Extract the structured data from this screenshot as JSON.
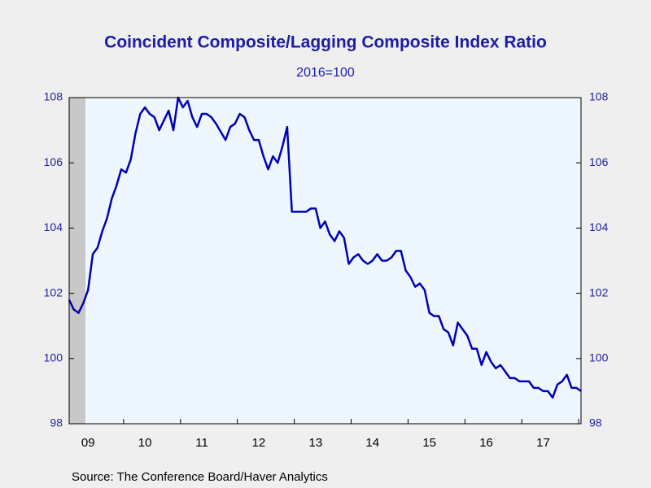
{
  "chart_data": {
    "type": "line",
    "title": "Coincident Composite/Lagging Composite Index Ratio",
    "subtitle": "2016=100",
    "source": "Source:  The Conference Board/Haver Analytics",
    "categories": [
      null,
      null,
      null,
      null,
      "09",
      null,
      null,
      null,
      null,
      null,
      null,
      null,
      null,
      null,
      null,
      null,
      "10",
      null,
      null,
      null,
      null,
      null,
      null,
      null,
      null,
      null,
      null,
      null,
      "11",
      null,
      null,
      null,
      null,
      null,
      null,
      null,
      null,
      null,
      null,
      null,
      "12",
      null,
      null,
      null,
      null,
      null,
      null,
      null,
      null,
      null,
      null,
      null,
      "13",
      null,
      null,
      null,
      null,
      null,
      null,
      null,
      null,
      null,
      null,
      null,
      "14",
      null,
      null,
      null,
      null,
      null,
      null,
      null,
      null,
      null,
      null,
      null,
      "15",
      null,
      null,
      null,
      null,
      null,
      null,
      null,
      null,
      null,
      null,
      null,
      "16",
      null,
      null,
      null,
      null,
      null,
      null,
      null,
      null,
      null,
      null,
      null,
      "17",
      null,
      null,
      null,
      null,
      null,
      null,
      null,
      null
    ],
    "series": [
      {
        "color": "#0000b4",
        "values": [
          101.8,
          101.5,
          101.4,
          101.7,
          102.1,
          103.2,
          103.4,
          103.9,
          104.3,
          104.9,
          105.3,
          105.8,
          105.7,
          106.1,
          106.9,
          107.5,
          107.7,
          107.5,
          107.4,
          107.0,
          107.3,
          107.6,
          107.0,
          108.0,
          107.7,
          107.9,
          107.4,
          107.1,
          107.5,
          107.5,
          107.4,
          107.2,
          106.95,
          106.7,
          107.1,
          107.2,
          107.5,
          107.4,
          107.0,
          106.7,
          106.7,
          106.2,
          105.8,
          106.2,
          106.0,
          106.5,
          107.1,
          104.5,
          104.5,
          104.5,
          104.5,
          104.6,
          104.6,
          104.0,
          104.2,
          103.8,
          103.6,
          103.9,
          103.7,
          102.9,
          103.1,
          103.2,
          103.0,
          102.9,
          103.0,
          103.2,
          103.0,
          103.0,
          103.1,
          103.3,
          103.3,
          102.7,
          102.5,
          102.2,
          102.3,
          102.1,
          101.4,
          101.3,
          101.3,
          100.9,
          100.8,
          100.4,
          101.1,
          100.9,
          100.7,
          100.3,
          100.3,
          99.8,
          100.2,
          99.9,
          99.7,
          99.8,
          99.6,
          99.4,
          99.4,
          99.3,
          99.3,
          99.3,
          99.1,
          99.1,
          99.0,
          99.0,
          98.8,
          99.2,
          99.3,
          99.5,
          99.1,
          99.1,
          99.0
        ]
      }
    ],
    "ylim": [
      98,
      108
    ],
    "yticks": [
      98,
      100,
      102,
      104,
      106,
      108
    ],
    "y2lim": [
      98,
      108
    ],
    "y2ticks": [
      98,
      100,
      102,
      104,
      106,
      108
    ],
    "grid": false
  }
}
